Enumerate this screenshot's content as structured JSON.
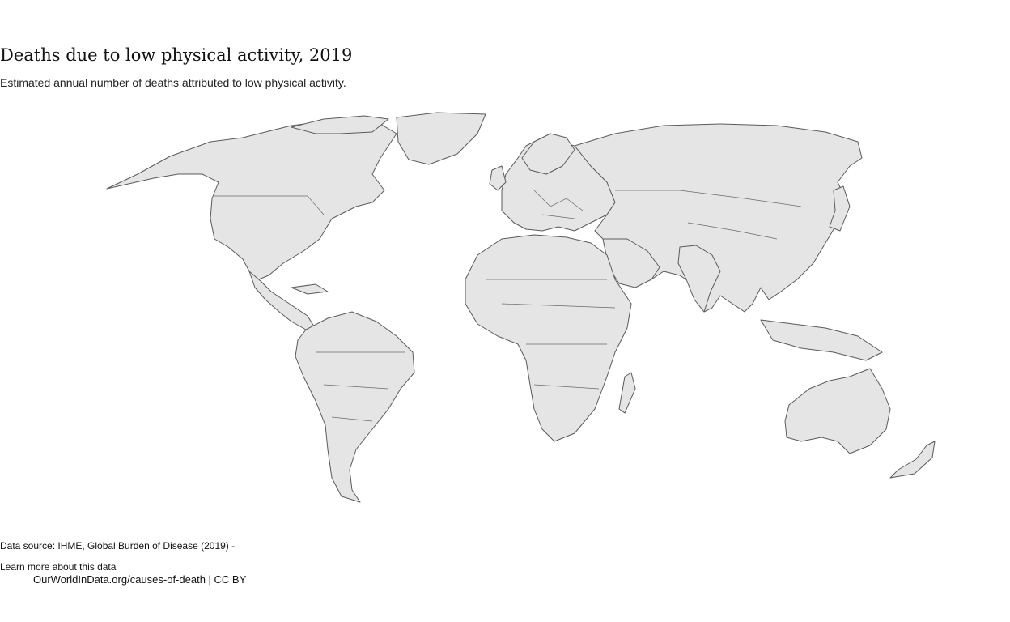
{
  "header": {
    "title": "Deaths due to low physical activity, 2019",
    "subtitle": "Estimated annual number of deaths attributed to low physical activity."
  },
  "map": {
    "projection": "robinson-like world map",
    "fill_color": "#e5e5e5",
    "border_color": "#5a5a5a"
  },
  "footer": {
    "source": "Data source: IHME, Global Burden of Disease (2019) -",
    "learn_more": "Learn more about this data",
    "url_license": "OurWorldInData.org/causes-of-death | CC BY"
  }
}
